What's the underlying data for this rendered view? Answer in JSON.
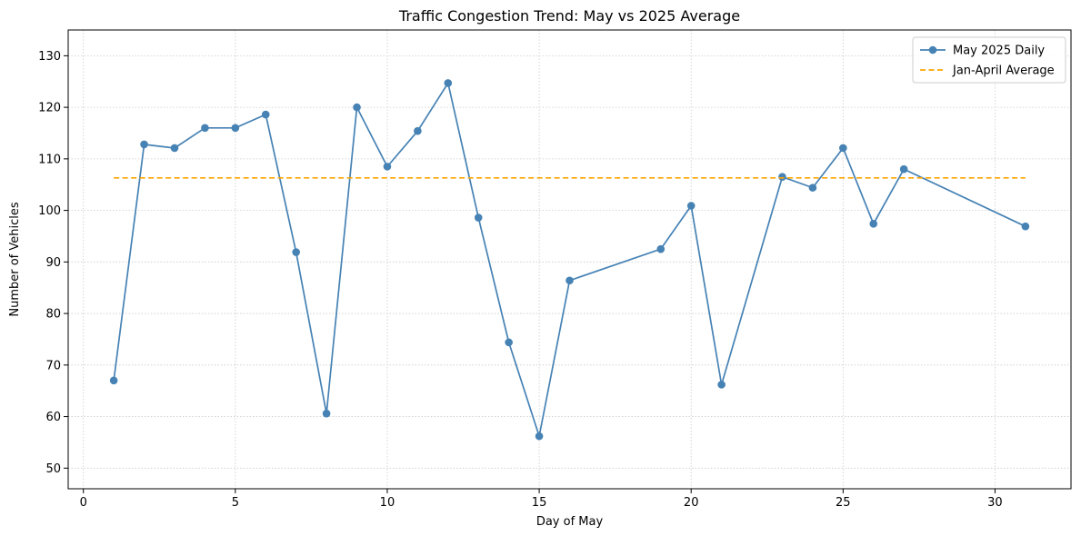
{
  "chart_data": {
    "type": "line",
    "title": "Traffic Congestion Trend: May vs 2025 Average",
    "xlabel": "Day of May",
    "ylabel": "Number of Vehicles",
    "xlim": [
      -0.5,
      32.5
    ],
    "ylim": [
      46,
      135
    ],
    "xticks": [
      0,
      5,
      10,
      15,
      20,
      25,
      30
    ],
    "yticks": [
      50,
      60,
      70,
      80,
      90,
      100,
      110,
      120,
      130
    ],
    "grid": true,
    "legend_position": "top-right",
    "series": [
      {
        "name": "May 2025 Daily",
        "style": "line-markers",
        "color": "#4682b4",
        "x": [
          1,
          2,
          3,
          4,
          5,
          6,
          7,
          8,
          9,
          10,
          11,
          12,
          13,
          14,
          15,
          16,
          19,
          20,
          21,
          23,
          24,
          25,
          26,
          27,
          31
        ],
        "y": [
          67.0,
          112.8,
          112.1,
          116.0,
          116.0,
          118.6,
          91.9,
          60.6,
          120.0,
          108.5,
          115.4,
          124.7,
          98.6,
          74.4,
          56.2,
          86.4,
          92.5,
          100.9,
          66.2,
          106.5,
          104.4,
          112.1,
          97.4,
          108.0,
          96.9
        ]
      },
      {
        "name": "Jan-April Average",
        "style": "dashed",
        "color": "#ffa500",
        "x": [
          1,
          31
        ],
        "y": [
          106.3,
          106.3
        ]
      }
    ]
  }
}
